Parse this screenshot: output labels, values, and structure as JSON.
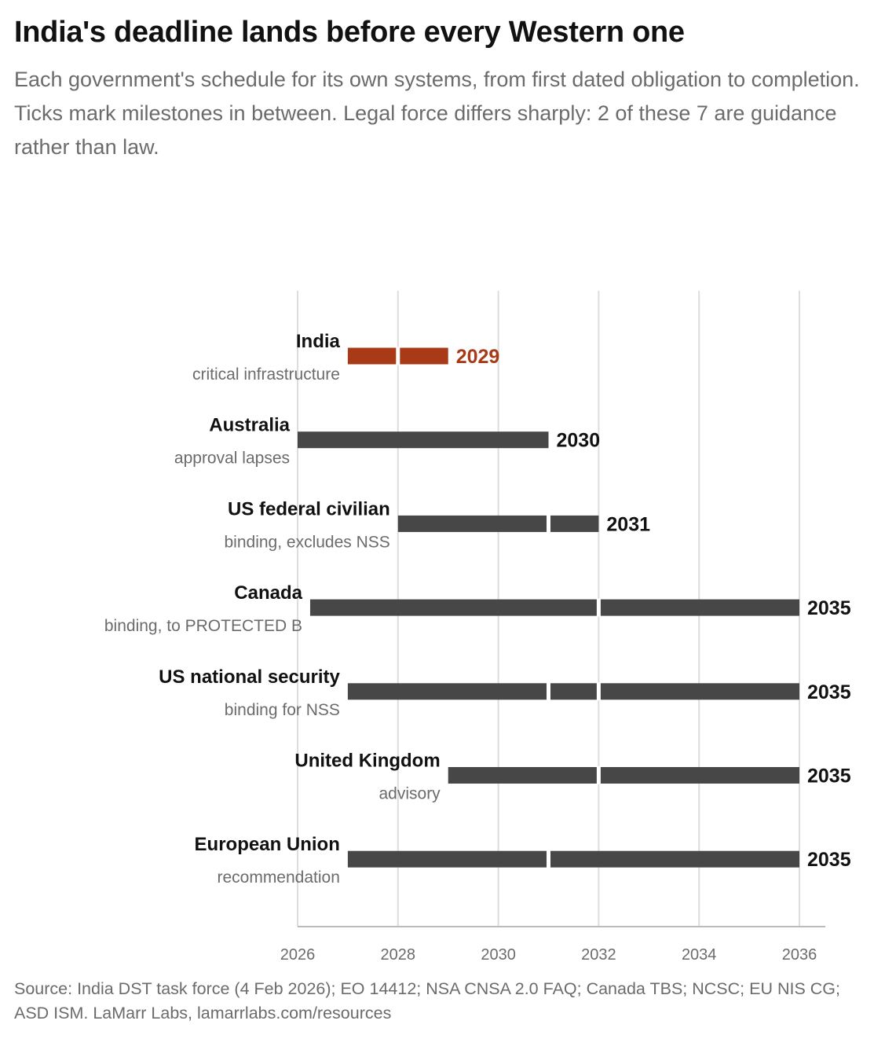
{
  "header": {
    "title": "India's deadline lands before every Western one",
    "subtitle": "Each government's schedule for its own systems, from first dated obligation to completion. Ticks mark milestones in between. Legal force differs sharply: 2 of these 7 are guidance rather than law."
  },
  "footer": {
    "source": "Source: India DST task force (4 Feb 2026); EO 14412; NSA CNSA 2.0 FAQ; Canada TBS; NCSC; EU NIS CG; ASD ISM. LaMarr Labs, lamarrlabs.com/resources"
  },
  "colors": {
    "highlight": "#a83a17",
    "bar": "#474747",
    "grid": "#dddddd",
    "axis": "#bbbbbb"
  },
  "chart_data": {
    "type": "bar",
    "orientation": "horizontal-range",
    "xlim": [
      2026,
      2036
    ],
    "xticks": [
      2026,
      2028,
      2030,
      2032,
      2034,
      2036
    ],
    "grid": "vertical",
    "rows": [
      {
        "name": "India",
        "note": "critical infrastructure",
        "start": 2027,
        "end": 2029,
        "end_label": "2029",
        "milestones": [
          2028
        ],
        "highlight": true
      },
      {
        "name": "Australia",
        "note": "approval lapses",
        "start": 2026,
        "end": 2031,
        "end_label": "2030",
        "milestones": [],
        "highlight": false
      },
      {
        "name": "US federal civilian",
        "note": "binding, excludes NSS",
        "start": 2028,
        "end": 2032,
        "end_label": "2031",
        "milestones": [
          2031
        ],
        "highlight": false
      },
      {
        "name": "Canada",
        "note": "binding, to PROTECTED B",
        "start": 2026.25,
        "end": 2036,
        "end_label": "2035",
        "milestones": [
          2032
        ],
        "highlight": false
      },
      {
        "name": "US national security",
        "note": "binding for NSS",
        "start": 2027,
        "end": 2036,
        "end_label": "2035",
        "milestones": [
          2031,
          2032
        ],
        "highlight": false
      },
      {
        "name": "United Kingdom",
        "note": "advisory",
        "start": 2029,
        "end": 2036,
        "end_label": "2035",
        "milestones": [
          2032
        ],
        "highlight": false
      },
      {
        "name": "European Union",
        "note": "recommendation",
        "start": 2027,
        "end": 2036,
        "end_label": "2035",
        "milestones": [
          2031
        ],
        "highlight": false
      }
    ]
  }
}
